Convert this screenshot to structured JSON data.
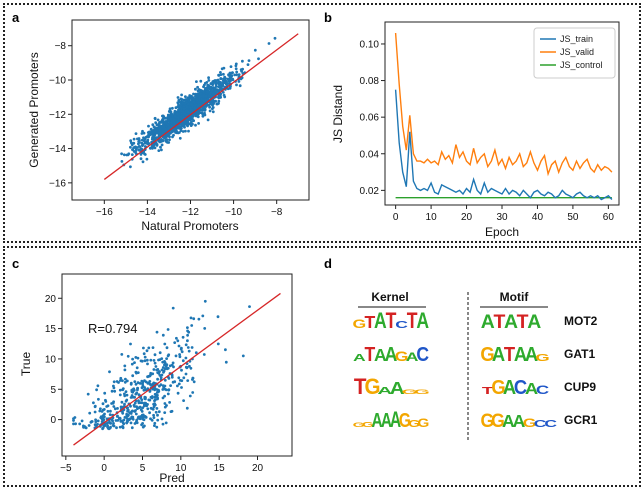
{
  "panels": {
    "a": "a",
    "b": "b",
    "c": "c",
    "d": "d"
  },
  "chart_data": [
    {
      "type": "scatter",
      "panel": "a",
      "xlabel": "Natural Promoters",
      "ylabel": "Generated Promoters",
      "xlim": [
        -17.5,
        -6.5
      ],
      "ylim": [
        -17,
        -6.5
      ],
      "xticks": [
        -16,
        -14,
        -12,
        -10,
        -8
      ],
      "yticks": [
        -16,
        -14,
        -12,
        -10,
        -8
      ],
      "point_color": "#1f77b4",
      "fit_line": {
        "color": "#d62728",
        "x": [
          -16,
          -7
        ],
        "y": [
          -15.8,
          -7.3
        ]
      }
    },
    {
      "type": "line",
      "panel": "b",
      "xlabel": "Epoch",
      "ylabel": "JS Distand",
      "xlim": [
        -3,
        63
      ],
      "ylim": [
        0.012,
        0.112
      ],
      "xticks": [
        0,
        10,
        20,
        30,
        40,
        50,
        60
      ],
      "yticks": [
        0.02,
        0.04,
        0.06,
        0.08,
        0.1
      ],
      "yticklabels": [
        "0.02",
        "0.04",
        "0.06",
        "0.08",
        "0.10"
      ],
      "legend": "top-right",
      "series": [
        {
          "name": "JS_train",
          "color": "#1f77b4",
          "values": [
            0.075,
            0.046,
            0.03,
            0.022,
            0.052,
            0.025,
            0.021,
            0.02,
            0.021,
            0.02,
            0.024,
            0.019,
            0.018,
            0.023,
            0.022,
            0.021,
            0.02,
            0.019,
            0.02,
            0.018,
            0.021,
            0.019,
            0.026,
            0.02,
            0.018,
            0.024,
            0.019,
            0.021,
            0.02,
            0.019,
            0.018,
            0.021,
            0.018,
            0.02,
            0.019,
            0.017,
            0.02,
            0.018,
            0.016,
            0.019,
            0.02,
            0.018,
            0.017,
            0.019,
            0.018,
            0.016,
            0.017,
            0.02,
            0.018,
            0.017,
            0.016,
            0.018,
            0.019,
            0.017,
            0.016,
            0.017,
            0.016,
            0.017,
            0.015,
            0.016,
            0.017,
            0.015
          ]
        },
        {
          "name": "JS_valid",
          "color": "#ff7f0e",
          "values": [
            0.106,
            0.078,
            0.055,
            0.042,
            0.061,
            0.04,
            0.036,
            0.036,
            0.035,
            0.037,
            0.035,
            0.036,
            0.034,
            0.041,
            0.037,
            0.039,
            0.035,
            0.045,
            0.038,
            0.041,
            0.036,
            0.034,
            0.043,
            0.035,
            0.038,
            0.04,
            0.033,
            0.036,
            0.042,
            0.034,
            0.037,
            0.032,
            0.038,
            0.034,
            0.036,
            0.04,
            0.033,
            0.035,
            0.041,
            0.035,
            0.031,
            0.036,
            0.039,
            0.029,
            0.034,
            0.036,
            0.03,
            0.035,
            0.038,
            0.033,
            0.031,
            0.036,
            0.032,
            0.035,
            0.037,
            0.032,
            0.03,
            0.034,
            0.031,
            0.033,
            0.032,
            0.03
          ]
        },
        {
          "name": "JS_control",
          "color": "#2ca02c",
          "values": [
            0.016,
            0.016,
            0.016,
            0.016,
            0.016,
            0.016,
            0.016,
            0.016,
            0.016,
            0.016,
            0.016,
            0.016,
            0.016,
            0.016,
            0.016,
            0.016,
            0.016,
            0.016,
            0.016,
            0.016,
            0.016,
            0.016,
            0.016,
            0.016,
            0.016,
            0.016,
            0.016,
            0.016,
            0.016,
            0.016,
            0.016,
            0.016,
            0.016,
            0.016,
            0.016,
            0.016,
            0.016,
            0.016,
            0.016,
            0.016,
            0.016,
            0.016,
            0.016,
            0.016,
            0.016,
            0.016,
            0.016,
            0.016,
            0.016,
            0.016,
            0.016,
            0.016,
            0.016,
            0.016,
            0.016,
            0.016,
            0.016,
            0.016,
            0.016,
            0.016,
            0.016,
            0.016
          ]
        }
      ]
    },
    {
      "type": "scatter",
      "panel": "c",
      "xlabel": "Pred",
      "ylabel": "True",
      "annotation": "R=0.794",
      "xlim": [
        -5.5,
        24.5
      ],
      "ylim": [
        -6,
        24
      ],
      "xticks": [
        -5,
        0,
        5,
        10,
        15,
        20
      ],
      "yticks": [
        0,
        5,
        10,
        15,
        20
      ],
      "point_color": "#1f77b4",
      "fit_line": {
        "color": "#d62728",
        "x": [
          -4,
          23
        ],
        "y": [
          -4.2,
          20.8
        ]
      }
    }
  ],
  "motif_table": {
    "kernel_header": "Kernel",
    "motif_header": "Motif",
    "rows": [
      {
        "kernel": "GTATCTA",
        "motif": "ATATA",
        "gene": "MOT2"
      },
      {
        "kernel": "ATAAGAC",
        "motif": "GATAAG",
        "gene": "GAT1"
      },
      {
        "kernel": "TGAAGG",
        "motif": "TGACAC",
        "gene": "CUP9"
      },
      {
        "kernel": "GGAAAGGG",
        "motif": "GGAAGCC",
        "gene": "GCR1"
      }
    ],
    "base_colors": {
      "A": "#2eaa2e",
      "C": "#1f56c8",
      "G": "#f3a600",
      "T": "#d42222"
    }
  }
}
